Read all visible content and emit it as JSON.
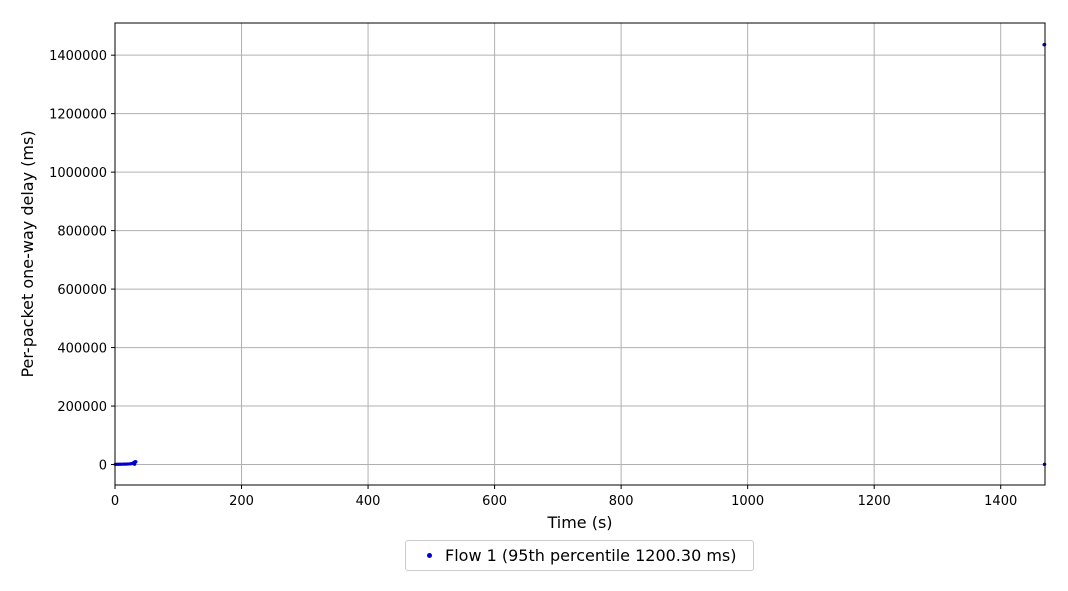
{
  "chart_data": {
    "type": "scatter",
    "xlabel": "Time (s)",
    "ylabel": "Per-packet one-way delay (ms)",
    "xlim": [
      0,
      1470
    ],
    "ylim": [
      -70000,
      1510000
    ],
    "x_ticks": [
      0,
      200,
      400,
      600,
      800,
      1000,
      1200,
      1400
    ],
    "y_ticks": [
      0,
      200000,
      400000,
      600000,
      800000,
      1000000,
      1200000,
      1400000
    ],
    "x_tick_labels": [
      "0",
      "200",
      "400",
      "600",
      "800",
      "1000",
      "1200",
      "1400"
    ],
    "y_tick_labels": [
      "0",
      "200000",
      "400000",
      "600000",
      "800000",
      "1000000",
      "1200000",
      "1400000"
    ],
    "grid": true,
    "legend_position": "bottom-center-outside",
    "series": [
      {
        "name": "Flow 1 (95th percentile 1200.30 ms)",
        "color": "#0000cc",
        "points": [
          [
            0.5,
            700
          ],
          [
            2,
            800
          ],
          [
            4,
            900
          ],
          [
            6,
            1000
          ],
          [
            8,
            1000
          ],
          [
            10,
            1100
          ],
          [
            12,
            1200
          ],
          [
            14,
            1300
          ],
          [
            16,
            1400
          ],
          [
            18,
            1500
          ],
          [
            20,
            1700
          ],
          [
            22,
            2000
          ],
          [
            24,
            2400
          ],
          [
            26,
            3000
          ],
          [
            28,
            4000
          ],
          [
            29,
            5500
          ],
          [
            30,
            7000
          ],
          [
            31,
            8500
          ],
          [
            32,
            10000
          ],
          [
            33,
            9000
          ],
          [
            30,
            2000
          ],
          [
            31,
            1000
          ],
          [
            1469,
            1436000
          ],
          [
            1469.5,
            1436500
          ],
          [
            1468.5,
            1435500
          ],
          [
            1469,
            500
          ],
          [
            1469.5,
            800
          ]
        ]
      }
    ]
  },
  "legend": {
    "label": "Flow 1 (95th percentile 1200.30 ms)",
    "color": "#0000cc"
  }
}
